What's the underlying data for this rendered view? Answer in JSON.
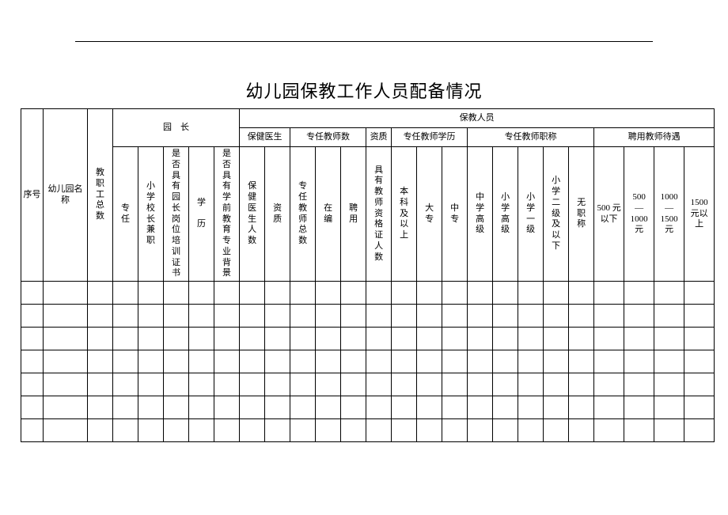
{
  "title": "幼儿园保教工作人员配备情况",
  "columns": {
    "seq": "序号",
    "name": "幼儿园名称",
    "staff_total": "教职工总数",
    "principal_group": "园　长",
    "principal": {
      "fulltime": "专任",
      "primary_head_concurrent": "小学校长兼职",
      "has_post_cert": "是否具有园长岗位培训证书",
      "education": "学　历",
      "has_preschool_bg": "是否具有学前教育专业背景"
    },
    "care_staff_group": "保教人员",
    "health_doctor_group": "保健医生",
    "health_doctor": {
      "count": "保健医生人数",
      "qual": "资质"
    },
    "fulltime_teacher_group": "专任教师数",
    "fulltime_teacher": {
      "total": "专任教师总数",
      "on_staff": "在编",
      "hired": "聘用"
    },
    "qualification_group": "资质",
    "qualification": {
      "cert_count": "具有教师资格证人数"
    },
    "teacher_edu_group": "专任教师学历",
    "teacher_edu": {
      "bachelor_up": "本科及以上",
      "college": "大专",
      "secondary": "中专"
    },
    "teacher_title_group": "专任教师职称",
    "teacher_title": {
      "mid_senior": "中学高级",
      "pri_senior": "小学高级",
      "pri_first": "小学一级",
      "pri_second_below": "小学二级及以下",
      "none": "无职称"
    },
    "salary_group": "聘用教师待遇",
    "salary": {
      "lt500_a": "500 元",
      "lt500_b": "以下",
      "r500_1000_a": "500",
      "r500_1000_b": "—",
      "r500_1000_c": "1000",
      "r500_1000_d": "元",
      "r1000_1500_a": "1000",
      "r1000_1500_b": "—",
      "r1000_1500_c": "1500",
      "r1000_1500_d": "元",
      "gt1500_a": "1500",
      "gt1500_b": "元以",
      "gt1500_c": "上"
    }
  },
  "rows": [
    {},
    {},
    {},
    {},
    {},
    {},
    {}
  ],
  "style": {
    "page_bg": "#ffffff",
    "border_color": "#000000",
    "title_fontsize": 22,
    "cell_fontsize": 11,
    "num_data_cols": 23
  }
}
